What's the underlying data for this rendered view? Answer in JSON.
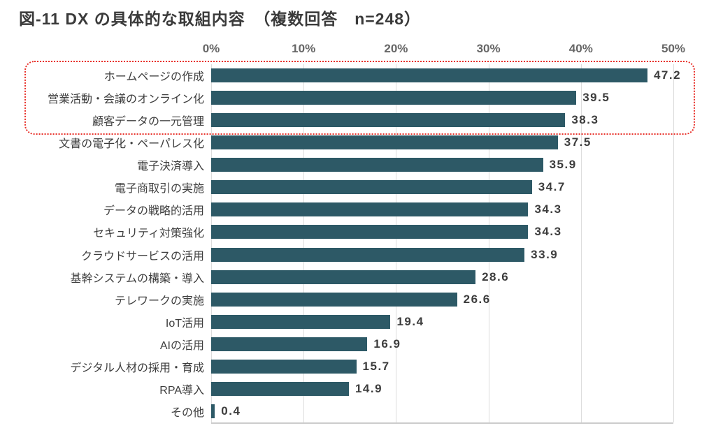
{
  "title": "図-11 DX の具体的な取組内容　（複数回答　n=248）",
  "colors": {
    "bar": "#2d5966",
    "highlight": "#e8312a",
    "grid": "#dcdcdc",
    "axis_line": "#cccccc",
    "title_text": "#3a3a3a",
    "label_text": "#3d3d3d",
    "value_text": "#3d3d3d",
    "tick_text": "#666666"
  },
  "chart_data": {
    "type": "bar",
    "orientation": "horizontal",
    "title": "図-11 DX の具体的な取組内容　（複数回答　n=248）",
    "n": 248,
    "categories": [
      "ホームページの作成",
      "営業活動・会議のオンライン化",
      "顧客データの一元管理",
      "文書の電子化・ペーパレス化",
      "電子決済導入",
      "電子商取引の実施",
      "データの戦略的活用",
      "セキュリティ対策強化",
      "クラウドサービスの活用",
      "基幹システムの構築・導入",
      "テレワークの実施",
      "IoT活用",
      "AIの活用",
      "デジタル人材の採用・育成",
      "RPA導入",
      "その他"
    ],
    "values": [
      47.2,
      39.5,
      38.3,
      37.5,
      35.9,
      34.7,
      34.3,
      34.3,
      33.9,
      28.6,
      26.6,
      19.4,
      16.9,
      15.7,
      14.9,
      0.4
    ],
    "x_tick_labels": [
      "0%",
      "10%",
      "20%",
      "30%",
      "40%",
      "50%"
    ],
    "xlim": [
      0,
      50
    ],
    "grid": "vertical",
    "legend": "none",
    "highlight": {
      "rows": [
        0,
        1,
        2
      ],
      "style": "red-dotted-rounded-box"
    }
  }
}
